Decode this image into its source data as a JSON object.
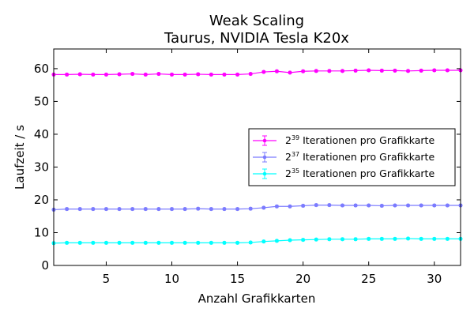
{
  "chart_data": {
    "type": "line",
    "title": "Weak Scaling",
    "subtitle": "Taurus, NVIDIA Tesla K20x",
    "xlabel": "Anzahl Grafikkarten",
    "ylabel": "Laufzeit / s",
    "xlim": [
      1,
      32
    ],
    "ylim": [
      0,
      66
    ],
    "xticks": [
      5,
      10,
      15,
      20,
      25,
      30
    ],
    "yticks": [
      0,
      10,
      20,
      30,
      40,
      50,
      60
    ],
    "grid": false,
    "legend_position": "right",
    "x": [
      1,
      2,
      3,
      4,
      5,
      6,
      7,
      8,
      9,
      10,
      11,
      12,
      13,
      14,
      15,
      16,
      17,
      18,
      19,
      20,
      21,
      22,
      23,
      24,
      25,
      26,
      27,
      28,
      29,
      30,
      31,
      32
    ],
    "series": [
      {
        "name": "2^39 Iterationen pro Grafikkarte",
        "legend_base": "2",
        "legend_exp": "39",
        "legend_text": "Iterationen pro Grafikkarte",
        "color": "#ff00ff",
        "values": [
          58.2,
          58.2,
          58.3,
          58.2,
          58.2,
          58.3,
          58.4,
          58.2,
          58.4,
          58.2,
          58.2,
          58.3,
          58.2,
          58.2,
          58.2,
          58.4,
          59.0,
          59.2,
          58.8,
          59.2,
          59.3,
          59.3,
          59.3,
          59.4,
          59.5,
          59.4,
          59.4,
          59.3,
          59.4,
          59.5,
          59.5,
          59.5
        ]
      },
      {
        "name": "2^37 Iterationen pro Grafikkarte",
        "legend_base": "2",
        "legend_exp": "37",
        "legend_text": "Iterationen pro Grafikkarte",
        "color": "#7b7bff",
        "values": [
          17.0,
          17.2,
          17.2,
          17.2,
          17.2,
          17.2,
          17.2,
          17.2,
          17.2,
          17.2,
          17.2,
          17.3,
          17.2,
          17.2,
          17.2,
          17.3,
          17.6,
          18.0,
          18.0,
          18.2,
          18.4,
          18.4,
          18.3,
          18.3,
          18.3,
          18.2,
          18.3,
          18.3,
          18.3,
          18.3,
          18.3,
          18.3
        ]
      },
      {
        "name": "2^35 Iterationen pro Grafikkarte",
        "legend_base": "2",
        "legend_exp": "35",
        "legend_text": "Iterationen pro Grafikkarte",
        "color": "#00ffff",
        "values": [
          6.8,
          6.9,
          6.9,
          6.9,
          6.9,
          6.9,
          6.9,
          6.9,
          6.9,
          6.9,
          6.9,
          6.9,
          6.9,
          6.9,
          6.9,
          7.0,
          7.3,
          7.5,
          7.7,
          7.8,
          7.9,
          8.0,
          8.0,
          8.0,
          8.1,
          8.1,
          8.1,
          8.2,
          8.1,
          8.1,
          8.1,
          8.1
        ]
      }
    ]
  }
}
